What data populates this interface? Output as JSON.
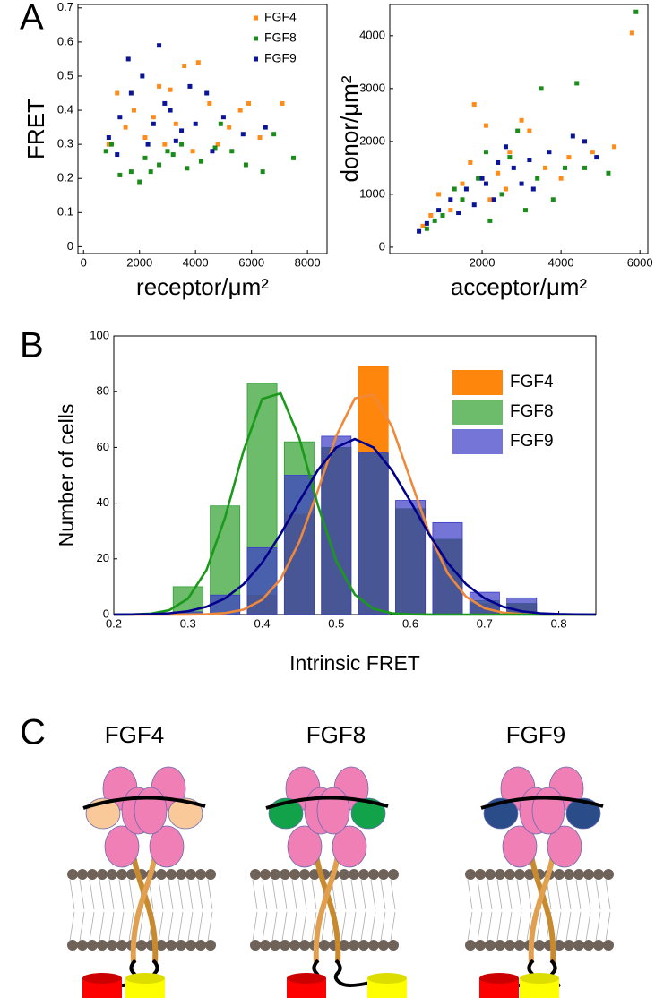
{
  "panel_labels": [
    "A",
    "B",
    "C"
  ],
  "chart_data": [
    {
      "type": "scatter",
      "ylabel": "FRET",
      "xlabel": "receptor/μm²",
      "xlim": [
        -200,
        8700
      ],
      "xticks": [
        0,
        2000,
        4000,
        6000,
        8000
      ],
      "ylim": [
        -0.02,
        0.71
      ],
      "yticks": [
        0,
        0.1,
        0.2,
        0.3,
        0.4,
        0.5,
        0.6,
        0.7
      ],
      "legend": "upper right",
      "series": [
        {
          "name": "FGF4",
          "color": "#ff8c1a",
          "x": [
            1200,
            1800,
            2500,
            3100,
            3600,
            4100,
            4500,
            5200,
            5600,
            5900,
            7100,
            2200,
            2900,
            3900,
            4800,
            1500,
            2700,
            3300,
            6300,
            900
          ],
          "y": [
            0.45,
            0.4,
            0.38,
            0.46,
            0.53,
            0.54,
            0.42,
            0.35,
            0.4,
            0.42,
            0.42,
            0.32,
            0.3,
            0.28,
            0.3,
            0.35,
            0.47,
            0.36,
            0.32,
            0.3
          ]
        },
        {
          "name": "FGF8",
          "color": "#1a8c1a",
          "x": [
            800,
            1300,
            1700,
            2200,
            2700,
            3200,
            3700,
            4200,
            4700,
            5300,
            5800,
            6400,
            7500,
            2000,
            3500,
            1000,
            6800,
            4900,
            2400,
            3000
          ],
          "y": [
            0.28,
            0.21,
            0.22,
            0.26,
            0.24,
            0.27,
            0.23,
            0.25,
            0.29,
            0.28,
            0.24,
            0.22,
            0.26,
            0.19,
            0.3,
            0.3,
            0.33,
            0.36,
            0.22,
            0.28
          ]
        },
        {
          "name": "FGF9",
          "color": "#0a1496",
          "x": [
            900,
            1300,
            1700,
            2100,
            2700,
            3100,
            3500,
            4000,
            4400,
            5000,
            5700,
            6500,
            1600,
            2300,
            2900,
            3300,
            3800,
            4600,
            1200,
            2500
          ],
          "y": [
            0.32,
            0.38,
            0.45,
            0.5,
            0.59,
            0.4,
            0.34,
            0.36,
            0.45,
            0.38,
            0.33,
            0.35,
            0.55,
            0.3,
            0.42,
            0.31,
            0.47,
            0.28,
            0.27,
            0.36
          ]
        }
      ]
    },
    {
      "type": "scatter",
      "ylabel": "donor/μm²",
      "xlabel": "acceptor/μm²",
      "xlim": [
        -340,
        6200
      ],
      "xticks": [
        2000,
        4000,
        6000
      ],
      "ylim": [
        -120,
        4590
      ],
      "yticks": [
        0,
        1000,
        2000,
        3000,
        4000
      ],
      "series": [
        {
          "color": "#ff8c1a",
          "x": [
            5800,
            5350,
            2100,
            2700,
            3200,
            1500,
            1800,
            900,
            4200,
            3600,
            2400,
            1200,
            4800,
            3000,
            700,
            2600,
            4000,
            1700,
            500,
            2200
          ],
          "y": [
            4050,
            1900,
            2300,
            1800,
            2200,
            1200,
            2700,
            1000,
            1700,
            1500,
            1400,
            700,
            1800,
            2400,
            600,
            1100,
            1300,
            1600,
            400,
            900
          ]
        },
        {
          "color": "#1a8c1a",
          "x": [
            5900,
            4400,
            3500,
            5200,
            2700,
            3100,
            2200,
            1500,
            1000,
            3400,
            4100,
            1900,
            600,
            2500,
            1300,
            3800,
            2900,
            800,
            4600,
            2100
          ],
          "y": [
            4450,
            3100,
            3000,
            1400,
            1700,
            700,
            500,
            900,
            600,
            1300,
            1500,
            1300,
            350,
            1000,
            1100,
            900,
            2200,
            500,
            1500,
            1800
          ]
        },
        {
          "color": "#0a1496",
          "x": [
            4600,
            4900,
            3700,
            3200,
            2800,
            2400,
            2000,
            1600,
            1200,
            900,
            600,
            400,
            3000,
            2300,
            1800,
            3300,
            2600,
            1400,
            4300,
            2100
          ],
          "y": [
            2000,
            1700,
            1800,
            1650,
            1500,
            1600,
            1300,
            1100,
            900,
            700,
            450,
            300,
            1200,
            900,
            800,
            1100,
            1900,
            650,
            2100,
            1200
          ]
        }
      ]
    },
    {
      "type": "histogram",
      "ylabel": "Number of cells",
      "xlabel": "Intrinsic FRET",
      "xlim": [
        0.2,
        0.85
      ],
      "xticks": [
        0.2,
        0.3,
        0.4,
        0.5,
        0.6,
        0.7,
        0.8
      ],
      "ylim": [
        0,
        100
      ],
      "yticks": [
        0,
        20,
        40,
        60,
        80,
        100
      ],
      "legend": "upper right",
      "x": [
        0.3,
        0.35,
        0.4,
        0.45,
        0.5,
        0.55,
        0.6,
        0.65,
        0.7,
        0.75
      ],
      "fit_x": [
        0.2,
        0.225,
        0.25,
        0.275,
        0.3,
        0.325,
        0.35,
        0.375,
        0.4,
        0.425,
        0.45,
        0.475,
        0.5,
        0.525,
        0.55,
        0.575,
        0.6,
        0.625,
        0.65,
        0.675,
        0.7,
        0.725,
        0.75,
        0.775,
        0.8,
        0.825,
        0.85
      ],
      "series": [
        {
          "name": "FGF4",
          "color": "#ff7f00",
          "fit_color": "#f0883a",
          "values": [
            0,
            0,
            7,
            36,
            60,
            89,
            38,
            27,
            4,
            4
          ],
          "fit": [
            0,
            0,
            0,
            0.005,
            0.03,
            0.13,
            0.53,
            1.8,
            5.3,
            12.7,
            26,
            44.4,
            64.1,
            77.6,
            78.9,
            67.5,
            48.5,
            29.4,
            14.9,
            6.4,
            2.3,
            0.69,
            0.17,
            0.04,
            0.01,
            0,
            0
          ]
        },
        {
          "name": "FGF8",
          "color": "#2ea02e",
          "fit_color": "#1a991a",
          "values": [
            10,
            39,
            83,
            62,
            60,
            58,
            38,
            27,
            5,
            4
          ],
          "fit": [
            0.008,
            0.06,
            0.35,
            1.6,
            5.7,
            16,
            34.8,
            58.8,
            77.4,
            79.4,
            63.4,
            39.4,
            19.2,
            7.2,
            2.1,
            0.48,
            0.09,
            0.01,
            0,
            0,
            0,
            0,
            0,
            0,
            0,
            0,
            0
          ]
        },
        {
          "name": "FGF9",
          "color": "#3a3ac8",
          "fit_color": "#00008c",
          "values": [
            1,
            7,
            24,
            50,
            64,
            58,
            41,
            33,
            8,
            6
          ],
          "fit": [
            0.02,
            0.06,
            0.17,
            0.48,
            1.2,
            2.8,
            5.8,
            10.9,
            18.6,
            28.9,
            40.6,
            51.8,
            60,
            63,
            60,
            51.8,
            40.6,
            28.9,
            18.6,
            10.9,
            5.8,
            2.8,
            1.2,
            0.48,
            0.17,
            0.06,
            0.02
          ]
        }
      ]
    }
  ],
  "diagram": {
    "labels": [
      "FGF4",
      "FGF8",
      "FGF9"
    ]
  }
}
